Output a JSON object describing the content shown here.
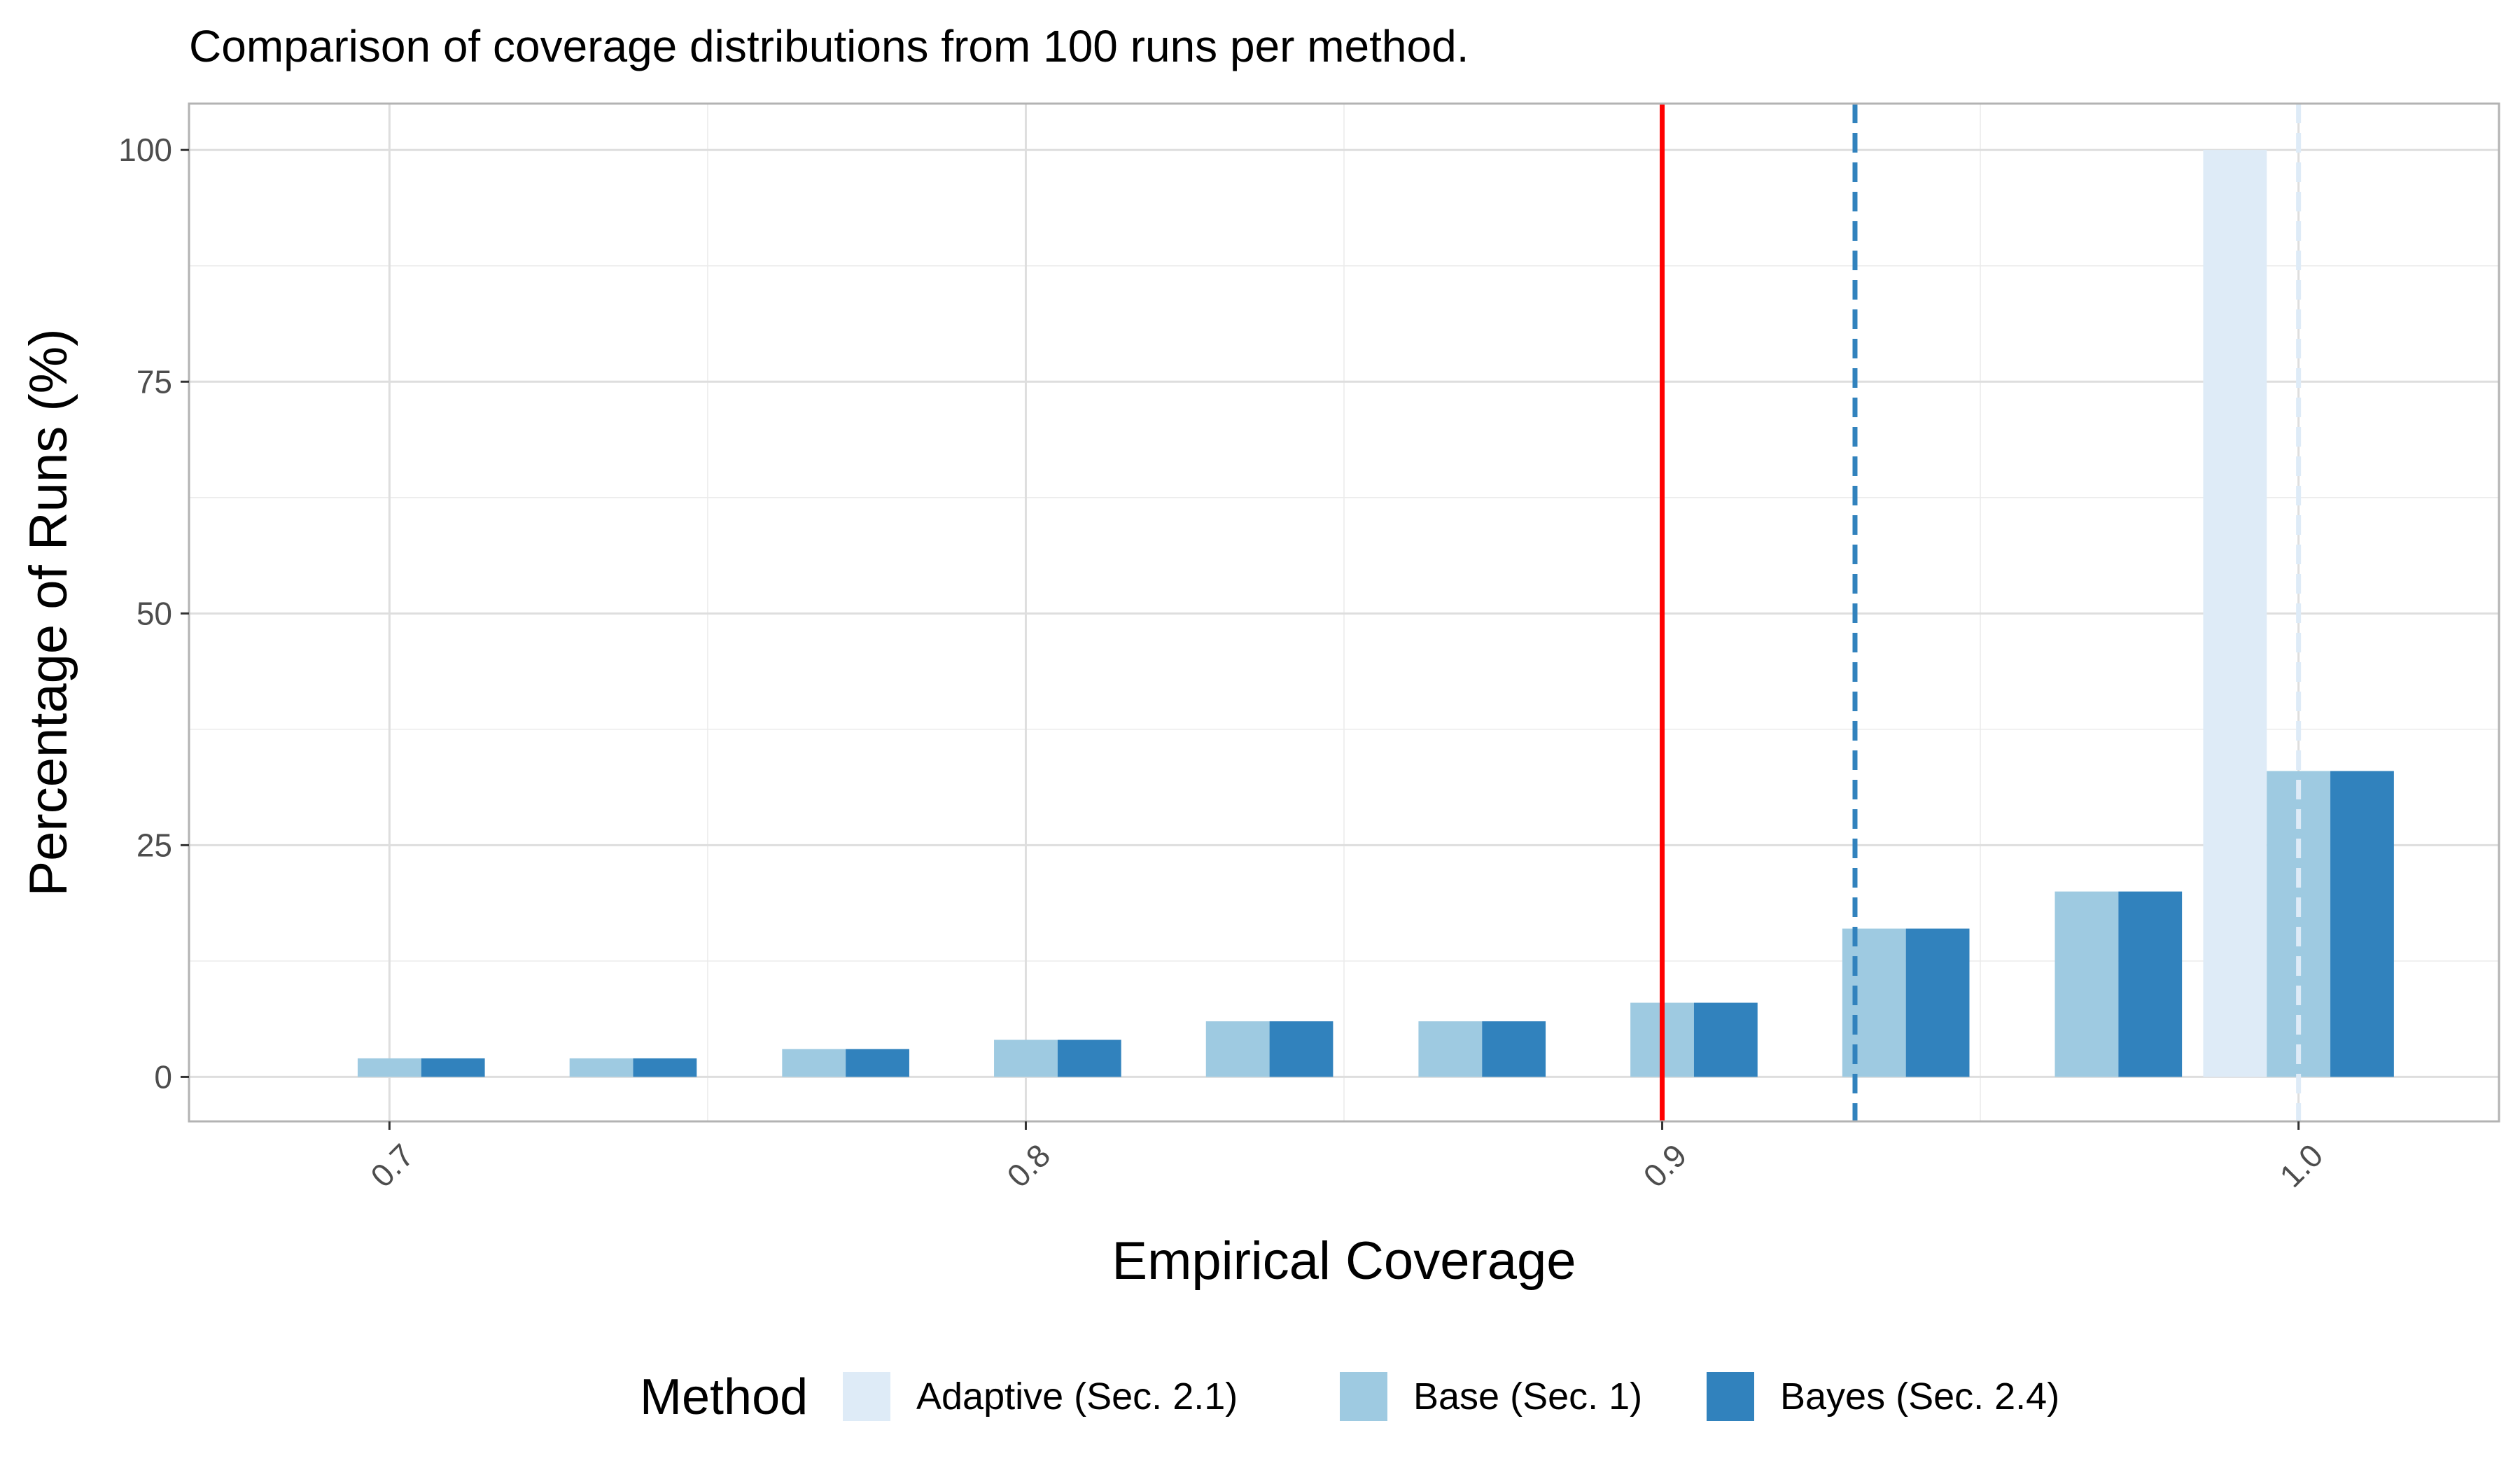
{
  "chart_data": {
    "type": "bar",
    "title": "Comparison of coverage distributions from 100 runs per method.",
    "xlabel": "Empirical Coverage",
    "ylabel": "Percentage of Runs (%)",
    "xlim": [
      0.6685,
      1.0315
    ],
    "ylim": [
      -4.8,
      105
    ],
    "x_ticks": [
      0.7,
      0.8,
      0.9,
      1.0
    ],
    "x_tick_labels": [
      "0.7",
      "0.8",
      "0.9",
      "1.0"
    ],
    "y_ticks": [
      0,
      25,
      50,
      75,
      100
    ],
    "y_tick_labels": [
      "0",
      "25",
      "50",
      "75",
      "100"
    ],
    "bin_width": 0.0333,
    "grid": true,
    "legend_title": "Method",
    "legend_position": "bottom",
    "series": [
      {
        "name": "Adaptive (Sec. 2.1)",
        "color": "#deebf7",
        "x": [
          0.7,
          0.7333,
          0.7667,
          0.8,
          0.8333,
          0.8667,
          0.9,
          0.9333,
          0.9667,
          1.0
        ],
        "values": [
          0,
          0,
          0,
          0,
          0,
          0,
          0,
          0,
          0,
          100
        ]
      },
      {
        "name": "Base (Sec. 1)",
        "color": "#9ecae1",
        "x": [
          0.7,
          0.7333,
          0.7667,
          0.8,
          0.8333,
          0.8667,
          0.9,
          0.9333,
          0.9667,
          1.0
        ],
        "values": [
          2,
          2,
          3,
          4,
          6,
          6,
          8,
          16,
          20,
          33
        ]
      },
      {
        "name": "Bayes (Sec. 2.4)",
        "color": "#3182bd",
        "x": [
          0.7,
          0.7333,
          0.7667,
          0.8,
          0.8333,
          0.8667,
          0.9,
          0.9333,
          0.9667,
          1.0
        ],
        "values": [
          2,
          2,
          3,
          4,
          6,
          6,
          8,
          16,
          20,
          33
        ]
      }
    ],
    "reference_lines": [
      {
        "x": 0.9,
        "color": "#ff0000",
        "style": "solid"
      },
      {
        "x": 0.9303,
        "color": "#3182bd",
        "style": "dashed"
      },
      {
        "x": 1.0,
        "color": "#deebf7",
        "style": "dashed"
      }
    ]
  }
}
